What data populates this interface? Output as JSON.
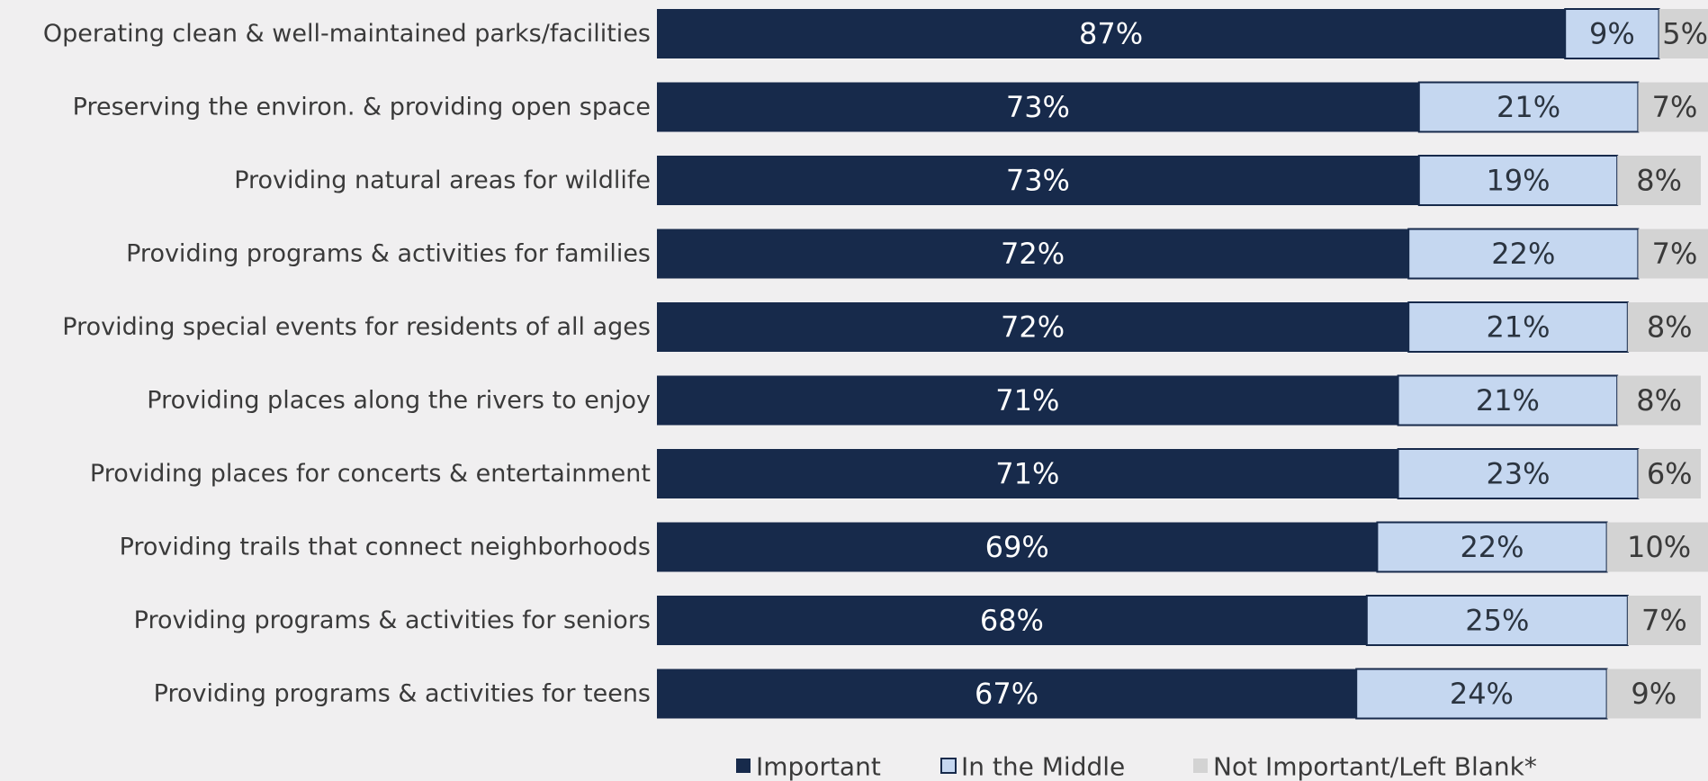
{
  "chart_data": {
    "type": "bar",
    "orientation": "horizontal",
    "stacked": true,
    "categories": [
      "Operating clean & well-maintained parks/facilities",
      "Preserving the environ. & providing open space",
      "Providing natural areas for wildlife",
      "Providing programs & activities for families",
      "Providing special events for residents of all ages",
      "Providing places along the rivers to enjoy",
      "Providing places for concerts & entertainment",
      "Providing trails that connect neighborhoods",
      "Providing programs & activities for seniors",
      "Providing programs & activities for teens"
    ],
    "series": [
      {
        "name": "Important",
        "color": "#172a4b",
        "label_color": "#ffffff",
        "values": [
          87,
          73,
          73,
          72,
          72,
          71,
          71,
          69,
          68,
          67
        ]
      },
      {
        "name": "In the Middle",
        "color": "#c5d7f0",
        "border_color": "#172a4b",
        "label_color": "#2b3440",
        "values": [
          9,
          21,
          19,
          22,
          21,
          21,
          23,
          22,
          25,
          24
        ]
      },
      {
        "name": "Not Important/Left Blank*",
        "color": "#d3d3d3",
        "label_color": "#3a3a3a",
        "values": [
          5,
          7,
          8,
          7,
          8,
          8,
          6,
          10,
          7,
          9
        ]
      }
    ],
    "value_suffix": "%",
    "xlim": [
      0,
      100
    ],
    "grid": false,
    "legend_position": "bottom"
  }
}
